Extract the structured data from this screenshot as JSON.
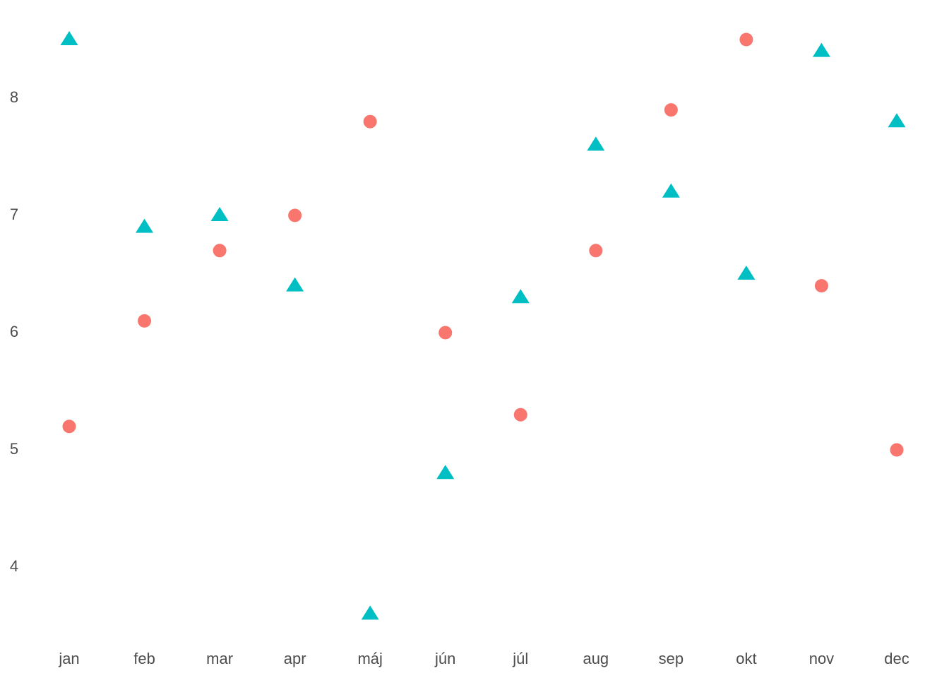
{
  "chart_data": {
    "type": "scatter",
    "categories": [
      "jan",
      "feb",
      "mar",
      "apr",
      "máj",
      "jún",
      "júl",
      "aug",
      "sep",
      "okt",
      "nov",
      "dec"
    ],
    "series": [
      {
        "color": "#F8766D",
        "marker": "circle",
        "values": [
          5.2,
          6.1,
          6.7,
          7.0,
          7.8,
          6.0,
          5.3,
          6.7,
          7.9,
          8.5,
          6.4,
          5.0
        ]
      },
      {
        "color": "#00BFC4",
        "marker": "triangle",
        "values": [
          8.5,
          6.9,
          7.0,
          6.4,
          3.6,
          4.8,
          6.3,
          7.6,
          7.2,
          6.5,
          8.4,
          7.8
        ]
      }
    ],
    "ylim": [
      3.4,
      8.7
    ],
    "yticks": [
      4,
      5,
      6,
      7,
      8
    ],
    "grid": false
  }
}
